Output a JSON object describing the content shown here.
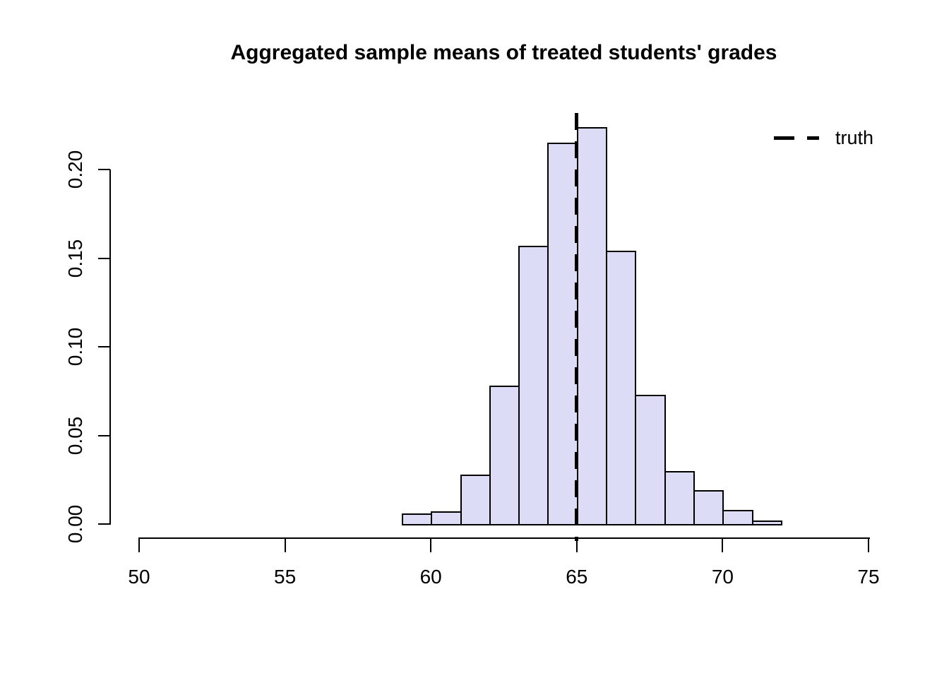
{
  "chart_data": {
    "type": "bar",
    "subtype": "histogram",
    "title": "Aggregated sample means of treated students' grades",
    "xlabel": "",
    "ylabel": "",
    "xlim": [
      50,
      75
    ],
    "ylim": [
      0,
      0.2
    ],
    "grid": false,
    "x_ticks": [
      {
        "value": 50,
        "label": "50"
      },
      {
        "value": 55,
        "label": "55"
      },
      {
        "value": 60,
        "label": "60"
      },
      {
        "value": 65,
        "label": "65"
      },
      {
        "value": 70,
        "label": "70"
      },
      {
        "value": 75,
        "label": "75"
      }
    ],
    "y_ticks": [
      {
        "value": 0.0,
        "label": "0.00"
      },
      {
        "value": 0.05,
        "label": "0.05"
      },
      {
        "value": 0.1,
        "label": "0.10"
      },
      {
        "value": 0.15,
        "label": "0.15"
      },
      {
        "value": 0.2,
        "label": "0.20"
      }
    ],
    "bins": {
      "start": 59,
      "width": 1,
      "densities": [
        0.006,
        0.007,
        0.028,
        0.078,
        0.157,
        0.215,
        0.224,
        0.154,
        0.073,
        0.03,
        0.019,
        0.008,
        0.002
      ]
    },
    "truth_line": {
      "x": 65,
      "style": "dashed",
      "color": "#000000"
    },
    "colors": {
      "bar_fill": "#dcdcf7",
      "bar_border": "#000000",
      "axis": "#000000"
    },
    "legend": {
      "position": "top-right",
      "entries": [
        {
          "label": "truth",
          "line_style": "dashed",
          "color": "#000000"
        }
      ]
    }
  }
}
